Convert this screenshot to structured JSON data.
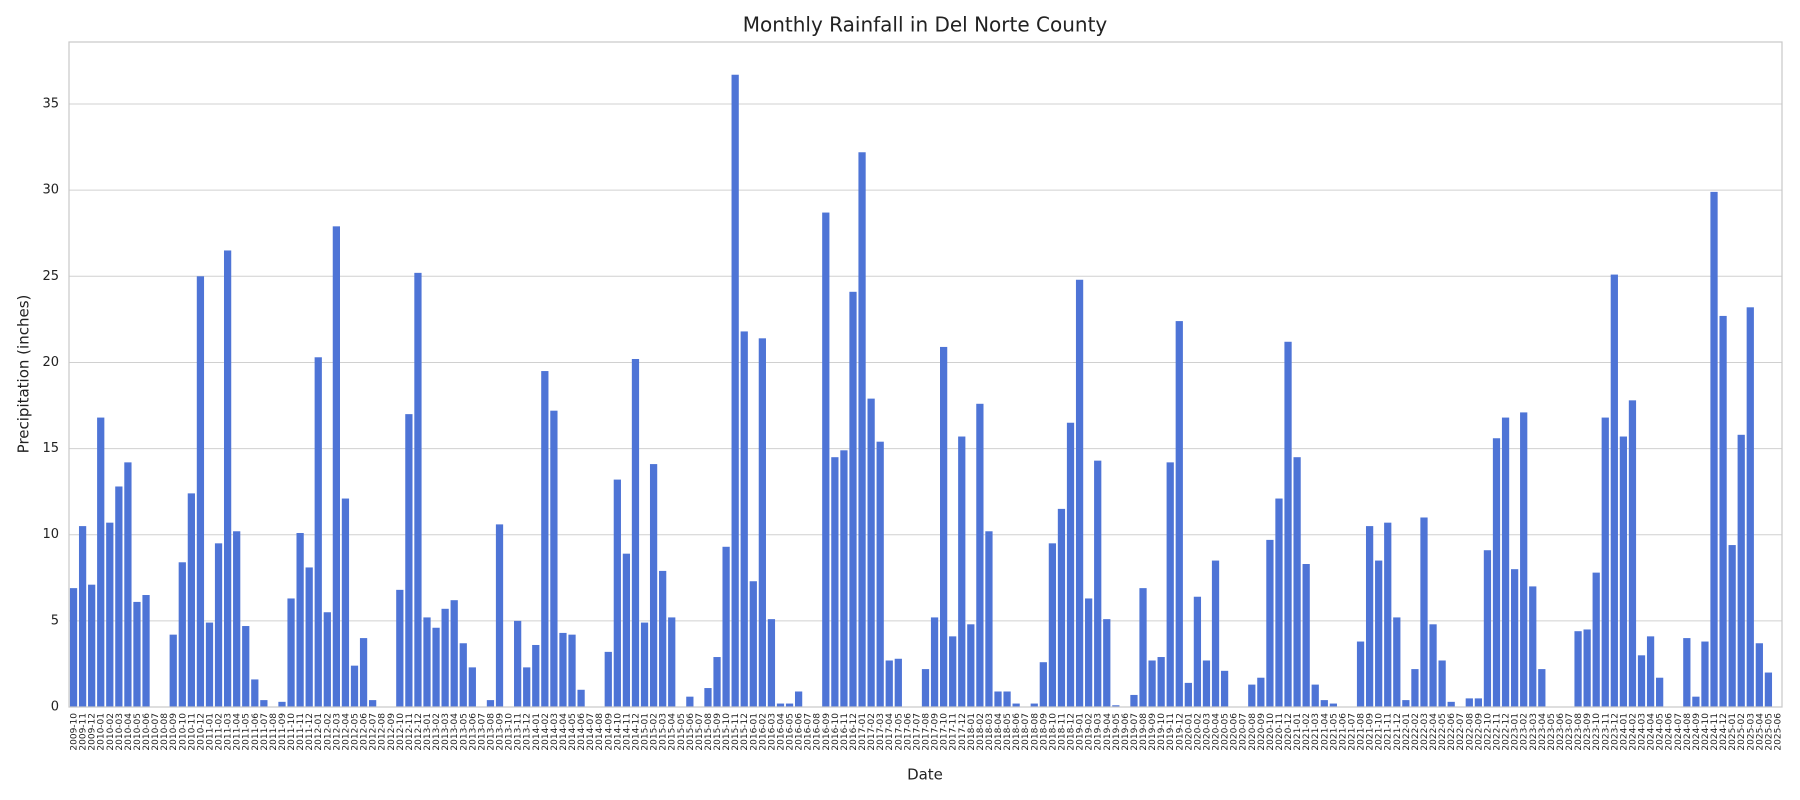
{
  "chart_data": {
    "type": "bar",
    "title": "Monthly Rainfall in Del Norte County",
    "x_label": "Date",
    "y_label": "Precipitation (inches)",
    "color": "#4e74d6",
    "grid": true,
    "ylim": [
      0,
      38.6
    ],
    "yticks": [
      0,
      5,
      10,
      15,
      20,
      25,
      30,
      35
    ],
    "categories": [
      "2009-10",
      "2009-11",
      "2009-12",
      "2010-01",
      "2010-02",
      "2010-03",
      "2010-04",
      "2010-05",
      "2010-06",
      "2010-07",
      "2010-08",
      "2010-09",
      "2010-10",
      "2010-11",
      "2010-12",
      "2011-01",
      "2011-02",
      "2011-03",
      "2011-04",
      "2011-05",
      "2011-06",
      "2011-07",
      "2011-08",
      "2011-09",
      "2011-10",
      "2011-11",
      "2011-12",
      "2012-01",
      "2012-02",
      "2012-03",
      "2012-04",
      "2012-05",
      "2012-06",
      "2012-07",
      "2012-08",
      "2012-09",
      "2012-10",
      "2012-11",
      "2012-12",
      "2013-01",
      "2013-02",
      "2013-03",
      "2013-04",
      "2013-05",
      "2013-06",
      "2013-07",
      "2013-08",
      "2013-09",
      "2013-10",
      "2013-11",
      "2013-12",
      "2014-01",
      "2014-02",
      "2014-03",
      "2014-04",
      "2014-05",
      "2014-06",
      "2014-07",
      "2014-08",
      "2014-09",
      "2014-10",
      "2014-11",
      "2014-12",
      "2015-01",
      "2015-02",
      "2015-03",
      "2015-04",
      "2015-05",
      "2015-06",
      "2015-07",
      "2015-08",
      "2015-09",
      "2015-10",
      "2015-11",
      "2015-12",
      "2016-01",
      "2016-02",
      "2016-03",
      "2016-04",
      "2016-05",
      "2016-06",
      "2016-07",
      "2016-08",
      "2016-09",
      "2016-10",
      "2016-11",
      "2016-12",
      "2017-01",
      "2017-02",
      "2017-03",
      "2017-04",
      "2017-05",
      "2017-06",
      "2017-07",
      "2017-08",
      "2017-09",
      "2017-10",
      "2017-11",
      "2017-12",
      "2018-01",
      "2018-02",
      "2018-03",
      "2018-04",
      "2018-05",
      "2018-06",
      "2018-07",
      "2018-08",
      "2018-09",
      "2018-10",
      "2018-11",
      "2018-12",
      "2019-01",
      "2019-02",
      "2019-03",
      "2019-04",
      "2019-05",
      "2019-06",
      "2019-07",
      "2019-08",
      "2019-09",
      "2019-10",
      "2019-11",
      "2019-12",
      "2020-01",
      "2020-02",
      "2020-03",
      "2020-04",
      "2020-05",
      "2020-06",
      "2020-07",
      "2020-08",
      "2020-09",
      "2020-10",
      "2020-11",
      "2020-12",
      "2021-01",
      "2021-02",
      "2021-03",
      "2021-04",
      "2021-05",
      "2021-06",
      "2021-07",
      "2021-08",
      "2021-09",
      "2021-10",
      "2021-11",
      "2021-12",
      "2022-01",
      "2022-02",
      "2022-03",
      "2022-04",
      "2022-05",
      "2022-06",
      "2022-07",
      "2022-08",
      "2022-09",
      "2022-10",
      "2022-11",
      "2022-12",
      "2023-01",
      "2023-02",
      "2023-03",
      "2023-04",
      "2023-05",
      "2023-06",
      "2023-07",
      "2023-08",
      "2023-09",
      "2023-10",
      "2023-11",
      "2023-12",
      "2024-01",
      "2024-02",
      "2024-03",
      "2024-04",
      "2024-05",
      "2024-06",
      "2024-07",
      "2024-08",
      "2024-09",
      "2024-10",
      "2024-11",
      "2024-12",
      "2025-01",
      "2025-02",
      "2025-03",
      "2025-04",
      "2025-05",
      "2025-06"
    ],
    "values": [
      6.9,
      10.5,
      7.1,
      16.8,
      10.7,
      12.8,
      14.2,
      6.1,
      6.5,
      0,
      0,
      4.2,
      8.4,
      12.4,
      25.0,
      4.9,
      9.5,
      26.5,
      10.2,
      4.7,
      1.6,
      0.4,
      0,
      0.3,
      6.3,
      10.1,
      8.1,
      20.3,
      5.5,
      27.9,
      12.1,
      2.4,
      4.0,
      0.4,
      0,
      0,
      6.8,
      17.0,
      25.2,
      5.2,
      4.6,
      5.7,
      6.2,
      3.7,
      2.3,
      0,
      0.4,
      10.6,
      0,
      5.0,
      2.3,
      3.6,
      19.5,
      17.2,
      4.3,
      4.2,
      1.0,
      0,
      0,
      3.2,
      13.2,
      8.9,
      20.2,
      4.9,
      14.1,
      7.9,
      5.2,
      0,
      0.6,
      0,
      1.1,
      2.9,
      9.3,
      36.7,
      21.8,
      7.3,
      21.4,
      5.1,
      0.2,
      0.2,
      0.9,
      0,
      0,
      28.7,
      14.5,
      14.9,
      24.1,
      32.2,
      17.9,
      15.4,
      2.7,
      2.8,
      0,
      0,
      2.2,
      5.2,
      20.9,
      4.1,
      15.7,
      4.8,
      17.6,
      10.2,
      0.9,
      0.9,
      0.2,
      0,
      0.2,
      2.6,
      9.5,
      11.5,
      16.5,
      24.8,
      6.3,
      14.3,
      5.1,
      0.1,
      0,
      0.7,
      6.9,
      2.7,
      2.9,
      14.2,
      22.4,
      1.4,
      6.4,
      2.7,
      8.5,
      2.1,
      0,
      0,
      1.3,
      1.7,
      9.7,
      12.1,
      21.2,
      14.5,
      8.3,
      1.3,
      0.4,
      0.2,
      0,
      0,
      3.8,
      10.5,
      8.5,
      10.7,
      5.2,
      0.4,
      2.2,
      11.0,
      4.8,
      2.7,
      0.3,
      0,
      0.5,
      0.5,
      9.1,
      15.6,
      16.8,
      8.0,
      17.1,
      7.0,
      2.2,
      0,
      0,
      0,
      4.4,
      4.5,
      7.8,
      16.8,
      25.1,
      15.7,
      17.8,
      3.0,
      4.1,
      1.7,
      0,
      0,
      4.0,
      0.6,
      3.8,
      29.9,
      22.7,
      9.4,
      15.8,
      23.2,
      3.7,
      2.0,
      0
    ]
  }
}
